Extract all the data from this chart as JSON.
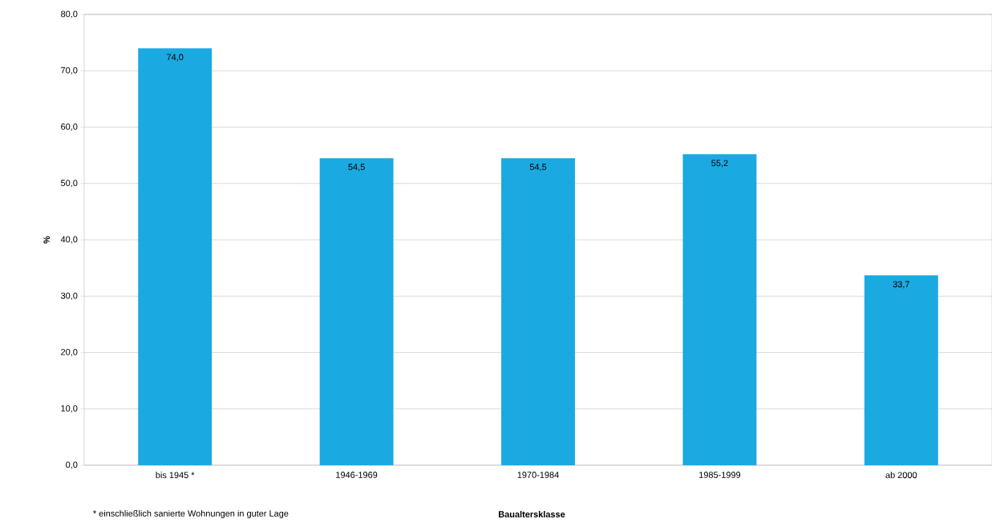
{
  "chart_data": {
    "type": "bar",
    "xlabel": "Baualtersklasse",
    "ylabel": "%",
    "categories": [
      "bis 1945 *",
      "1946-1969",
      "1970-1984",
      "1985-1999",
      "ab 2000"
    ],
    "values": [
      74.0,
      54.5,
      54.5,
      55.2,
      33.7
    ],
    "value_labels": [
      "74,0",
      "54,5",
      "54,5",
      "55,2",
      "33,7"
    ],
    "color": "#1ba9e1",
    "ylim": [
      0,
      80
    ],
    "yticks": [
      {
        "value": 0,
        "label": "0,0"
      },
      {
        "value": 10,
        "label": "10,0"
      },
      {
        "value": 20,
        "label": "20,0"
      },
      {
        "value": 30,
        "label": "30,0"
      },
      {
        "value": 40,
        "label": "40,0"
      },
      {
        "value": 50,
        "label": "50,0"
      },
      {
        "value": 60,
        "label": "60,0"
      },
      {
        "value": 70,
        "label": "70,0"
      },
      {
        "value": 80,
        "label": "80,0"
      }
    ],
    "grid": "y",
    "annotations": [
      "* einschließlich sanierte Wohnungen in guter Lage"
    ]
  }
}
